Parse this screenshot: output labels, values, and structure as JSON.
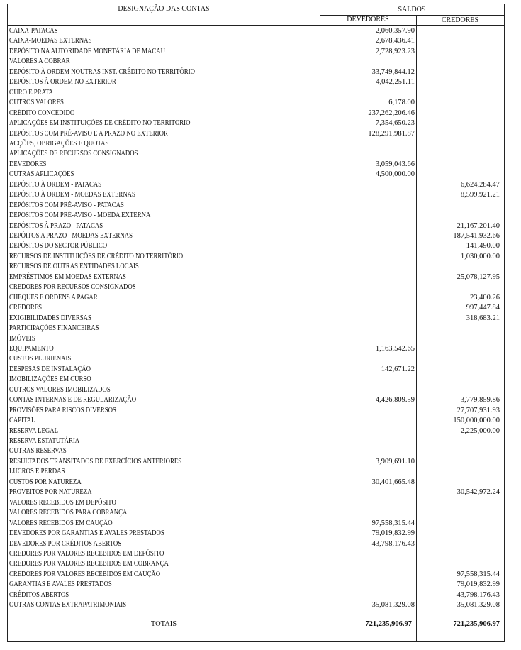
{
  "header": {
    "designation": "DESIGNAÇÃO DAS CONTAS",
    "saldos": "SALDOS",
    "devedores": "DEVEDORES",
    "credores": "CREDORES"
  },
  "rows": [
    {
      "name": "CAIXA-PATACAS",
      "dev": "2,060,357.90",
      "cred": ""
    },
    {
      "name": "CAIXA-MOEDAS EXTERNAS",
      "dev": "2,678,436.41",
      "cred": ""
    },
    {
      "name": "DEPÓSITO NA AUTORIDADE MONETÁRIA DE MACAU",
      "dev": "2,728,923.23",
      "cred": ""
    },
    {
      "name": "VALORES  A COBRAR",
      "dev": "",
      "cred": ""
    },
    {
      "name": "DEPÓSITO À ORDEM NOUTRAS INST. CRÉDITO NO TERRITÓRIO",
      "dev": "33,749,844.12",
      "cred": ""
    },
    {
      "name": "DEPÓSITOS À ORDEM NO EXTERIOR",
      "dev": "4,042,251.11",
      "cred": ""
    },
    {
      "name": "OURO E PRATA",
      "dev": "",
      "cred": ""
    },
    {
      "name": "OUTROS VALORES",
      "dev": "6,178.00",
      "cred": ""
    },
    {
      "name": "CRÉDITO CONCEDIDO",
      "dev": "237,262,206.46",
      "cred": ""
    },
    {
      "name": "APLICAÇÕES EM INSTITUIÇÕES DE CRÉDITO NO TERRITÓRIO",
      "dev": "7,354,650.23",
      "cred": ""
    },
    {
      "name": "DEPÓSITOS COM PRÉ-AVISO E A PRAZO NO EXTERIOR",
      "dev": "128,291,981.87",
      "cred": ""
    },
    {
      "name": "ACÇÕES, OBRIGAÇÕES E QUOTAS",
      "dev": "",
      "cred": ""
    },
    {
      "name": "APLICAÇÕES DE RECURSOS CONSIGNADOS",
      "dev": "",
      "cred": ""
    },
    {
      "name": "DEVEDORES",
      "dev": "3,059,043.66",
      "cred": ""
    },
    {
      "name": "OUTRAS  APLICAÇÕES",
      "dev": "4,500,000.00",
      "cred": ""
    },
    {
      "name": "DEPÓSITO À ORDEM - PATACAS",
      "dev": "",
      "cred": "6,624,284.47"
    },
    {
      "name": "DEPÓSITO À ORDEM - MOEDAS EXTERNAS",
      "dev": "",
      "cred": "8,599,921.21"
    },
    {
      "name": "DEPÓSITOS COM PRÉ-AVISO - PATACAS",
      "dev": "",
      "cred": ""
    },
    {
      "name": "DEPÓSITOS COM PRÉ-AVISO - MOEDA EXTERNA",
      "dev": "",
      "cred": ""
    },
    {
      "name": "DEPÓSITOS À  PRAZO - PATACAS",
      "dev": "",
      "cred": "21,167,201.40"
    },
    {
      "name": "DEPÓITOS A PRAZO - MOEDAS EXTERNAS",
      "dev": "",
      "cred": "187,541,932.66"
    },
    {
      "name": "DEPÓSITOS DO SECTOR PÚBLICO",
      "dev": "",
      "cred": "141,490.00"
    },
    {
      "name": "RECURSOS DE INSTITUIÇÕES DE CRÉDITO NO TERRITÓRIO",
      "dev": "",
      "cred": "1,030,000.00"
    },
    {
      "name": "RECURSOS DE OUTRAS ENTIDADES LOCAIS",
      "dev": "",
      "cred": ""
    },
    {
      "name": "EMPRÉSTIMOS EM MOEDAS EXTERNAS",
      "dev": "",
      "cred": "25,078,127.95"
    },
    {
      "name": "CREDORES POR RECURSOS CONSIGNADOS",
      "dev": "",
      "cred": ""
    },
    {
      "name": "CHEQUES E ORDENS A PAGAR",
      "dev": "",
      "cred": "23,400.26"
    },
    {
      "name": "CREDORES",
      "dev": "",
      "cred": "997,447.84"
    },
    {
      "name": "EXIGIBILIDADES DIVERSAS",
      "dev": "",
      "cred": "318,683.21"
    },
    {
      "name": "PARTICIPAÇÕES FINANCEIRAS",
      "dev": "",
      "cred": ""
    },
    {
      "name": "IMÓVEIS",
      "dev": "",
      "cred": ""
    },
    {
      "name": "EQUIPAMENTO",
      "dev": "1,163,542.65",
      "cred": ""
    },
    {
      "name": "CUSTOS PLURIENAIS",
      "dev": "",
      "cred": ""
    },
    {
      "name": "DESPESAS DE  INSTALAÇÃO",
      "dev": "142,671.22",
      "cred": ""
    },
    {
      "name": "IMOBILIZAÇÕES EM CURSO",
      "dev": "",
      "cred": ""
    },
    {
      "name": "OUTROS VALORES IMOBILIZADOS",
      "dev": "",
      "cred": ""
    },
    {
      "name": "CONTAS INTERNAS E DE REGULARIZAÇÃO",
      "dev": "4,426,809.59",
      "cred": "3,779,859.86"
    },
    {
      "name": "PROVISÕES  PARA RISCOS DIVERSOS",
      "dev": "",
      "cred": "27,707,931.93"
    },
    {
      "name": "CAPITAL",
      "dev": "",
      "cred": "150,000,000.00"
    },
    {
      "name": "RESERVA LEGAL",
      "dev": "",
      "cred": "2,225,000.00"
    },
    {
      "name": "RESERVA ESTATUTÁRIA",
      "dev": "",
      "cred": ""
    },
    {
      "name": "OUTRAS RESERVAS",
      "dev": "",
      "cred": ""
    },
    {
      "name": "RESULTADOS TRANSITADOS DE EXERCÍCIOS  ANTERIORES",
      "dev": "3,909,691.10",
      "cred": ""
    },
    {
      "name": "LUCROS E PERDAS",
      "dev": "",
      "cred": ""
    },
    {
      "name": "CUSTOS POR NATUREZA",
      "dev": "30,401,665.48",
      "cred": ""
    },
    {
      "name": "PROVEITOS POR NATUREZA",
      "dev": "",
      "cred": "30,542,972.24"
    },
    {
      "name": "VALORES RECEBIDOS EM DEPÓSITO",
      "dev": "",
      "cred": ""
    },
    {
      "name": "VALORES RECEBIDOS PARA COBRANÇA",
      "dev": "",
      "cred": ""
    },
    {
      "name": "VALORES RECEBIDOS EM CAUÇÃO",
      "dev": "97,558,315.44",
      "cred": ""
    },
    {
      "name": "DEVEDORES POR GARANTIAS E AVALES PRESTADOS",
      "dev": "79,019,832.99",
      "cred": ""
    },
    {
      "name": "DEVEDORES POR CRÉDITOS ABERTOS",
      "dev": "43,798,176.43",
      "cred": ""
    },
    {
      "name": "CREDORES POR VALORES RECEBIDOS EM DEPÓSITO",
      "dev": "",
      "cred": ""
    },
    {
      "name": "CREDORES POR VALORES RECEBIDOS EM COBRANÇA",
      "dev": "",
      "cred": ""
    },
    {
      "name": "CREDORES POR VALORES RECEBIDOS EM CAUÇÃO",
      "dev": "",
      "cred": "97,558,315.44"
    },
    {
      "name": "GARANTIAS E AVALES PRESTADOS",
      "dev": "",
      "cred": "79,019,832.99"
    },
    {
      "name": "CRÉDITOS ABERTOS",
      "dev": "",
      "cred": "43,798,176.43"
    },
    {
      "name": "OUTRAS CONTAS EXTRAPATRIMONIAIS",
      "dev": "35,081,329.08",
      "cred": "35,081,329.08"
    }
  ],
  "totals": {
    "label": "TOTAIS",
    "dev": "721,235,906.97",
    "cred": "721,235,906.97"
  }
}
